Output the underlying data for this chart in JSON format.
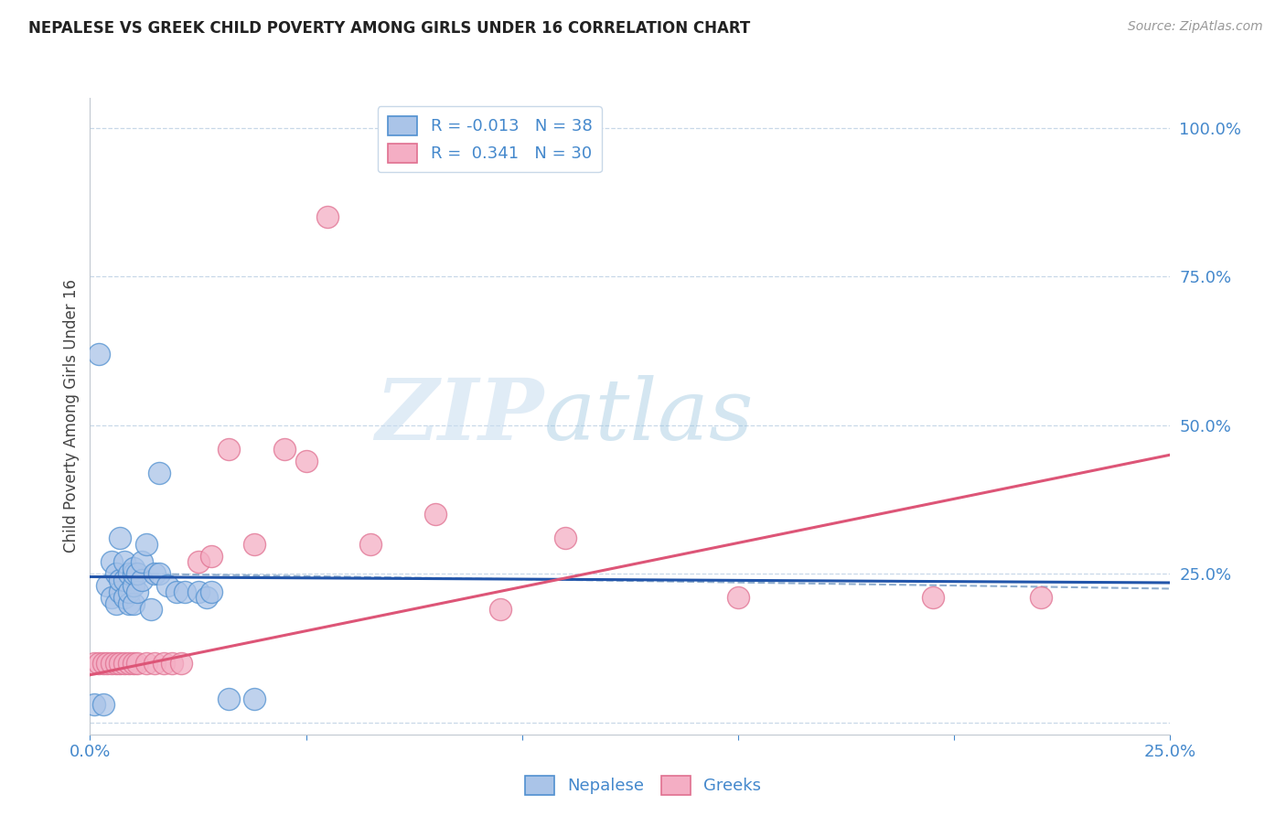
{
  "title": "NEPALESE VS GREEK CHILD POVERTY AMONG GIRLS UNDER 16 CORRELATION CHART",
  "source": "Source: ZipAtlas.com",
  "ylabel": "Child Poverty Among Girls Under 16",
  "xlim": [
    0.0,
    0.25
  ],
  "ylim": [
    -0.02,
    1.05
  ],
  "xticks": [
    0.0,
    0.05,
    0.1,
    0.15,
    0.2,
    0.25
  ],
  "xticklabels": [
    "0.0%",
    "",
    "",
    "",
    "",
    "25.0%"
  ],
  "yticks": [
    0.0,
    0.25,
    0.5,
    0.75,
    1.0
  ],
  "yticklabels": [
    "",
    "25.0%",
    "50.0%",
    "75.0%",
    "100.0%"
  ],
  "nepalese_R": -0.013,
  "nepalese_N": 38,
  "greek_R": 0.341,
  "greek_N": 30,
  "nepalese_color": "#aac4e8",
  "greek_color": "#f4aec4",
  "nepalese_edge_color": "#5090d0",
  "greek_edge_color": "#e07090",
  "nepalese_line_color": "#2255aa",
  "greek_line_color": "#dd5577",
  "dashed_line_color": "#90aece",
  "watermark_zip": "ZIP",
  "watermark_atlas": "atlas",
  "nepalese_x": [
    0.001,
    0.002,
    0.003,
    0.004,
    0.005,
    0.005,
    0.006,
    0.006,
    0.007,
    0.007,
    0.007,
    0.008,
    0.008,
    0.008,
    0.009,
    0.009,
    0.009,
    0.01,
    0.01,
    0.01,
    0.01,
    0.011,
    0.011,
    0.012,
    0.012,
    0.013,
    0.014,
    0.015,
    0.016,
    0.016,
    0.018,
    0.02,
    0.022,
    0.025,
    0.027,
    0.028,
    0.032,
    0.038
  ],
  "nepalese_y": [
    0.03,
    0.62,
    0.03,
    0.23,
    0.21,
    0.27,
    0.2,
    0.25,
    0.22,
    0.24,
    0.31,
    0.21,
    0.24,
    0.27,
    0.2,
    0.22,
    0.25,
    0.2,
    0.23,
    0.25,
    0.26,
    0.22,
    0.25,
    0.24,
    0.27,
    0.3,
    0.19,
    0.25,
    0.42,
    0.25,
    0.23,
    0.22,
    0.22,
    0.22,
    0.21,
    0.22,
    0.04,
    0.04
  ],
  "greek_x": [
    0.001,
    0.002,
    0.003,
    0.004,
    0.005,
    0.006,
    0.007,
    0.008,
    0.009,
    0.01,
    0.011,
    0.013,
    0.015,
    0.017,
    0.019,
    0.021,
    0.025,
    0.028,
    0.032,
    0.038,
    0.045,
    0.05,
    0.055,
    0.065,
    0.08,
    0.095,
    0.11,
    0.15,
    0.195,
    0.22
  ],
  "greek_y": [
    0.1,
    0.1,
    0.1,
    0.1,
    0.1,
    0.1,
    0.1,
    0.1,
    0.1,
    0.1,
    0.1,
    0.1,
    0.1,
    0.1,
    0.1,
    0.1,
    0.27,
    0.28,
    0.46,
    0.3,
    0.46,
    0.44,
    0.85,
    0.3,
    0.35,
    0.19,
    0.31,
    0.21,
    0.21,
    0.21
  ]
}
